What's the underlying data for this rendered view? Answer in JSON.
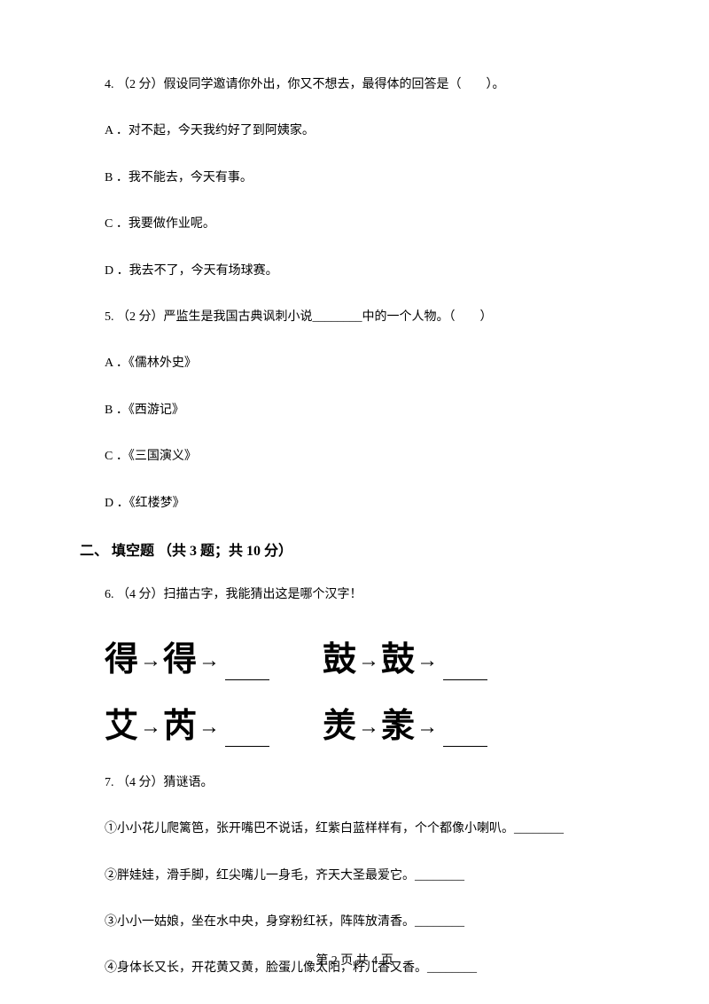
{
  "q4": {
    "text": "4. （2 分）假设同学邀请你外出，你又不想去，最得体的回答是（　　）。",
    "options": {
      "a": "A ．对不起，今天我约好了到阿姨家。",
      "b": "B ．我不能去，今天有事。",
      "c": "C ．我要做作业呢。",
      "d": "D ．我去不了，今天有场球赛。"
    }
  },
  "q5": {
    "text": "5. （2 分）严监生是我国古典讽刺小说________中的一个人物。（　　）",
    "options": {
      "a": "A ．《儒林外史》",
      "b": "B ．《西游记》",
      "c": "C ．《三国演义》",
      "d": "D ．《红楼梦》"
    }
  },
  "section2": {
    "header": "二、 填空题 （共 3 题；共 10 分）"
  },
  "q6": {
    "text": "6. （4 分）扫描古字，我能猜出这是哪个汉字！",
    "glyphs": {
      "row1_left_1": "得",
      "row1_left_2": "得",
      "row1_right_1": "鼓",
      "row1_right_2": "鼓",
      "row2_left_1": "艾",
      "row2_left_2": "芮",
      "row2_right_1": "羙",
      "row2_right_2": "羕"
    }
  },
  "q7": {
    "text": "7. （4 分）猜谜语。",
    "riddles": {
      "r1": "①小小花儿爬篱笆，张开嘴巴不说话，红紫白蓝样样有，个个都像小喇叭。________",
      "r2": "②胖娃娃，滑手脚，红尖嘴儿一身毛，齐天大圣最爱它。________",
      "r3": "③小小一姑娘，坐在水中央，身穿粉红袄，阵阵放清香。________",
      "r4": "④身体长又长，开花黄又黄，脸蛋儿像太阳，籽儿香又香。________"
    }
  },
  "footer": "第 2 页 共 4 页",
  "colors": {
    "background": "#ffffff",
    "text": "#000000"
  },
  "typography": {
    "body_fontsize": 14,
    "section_fontsize": 16,
    "glyph_fontsize": 38
  }
}
